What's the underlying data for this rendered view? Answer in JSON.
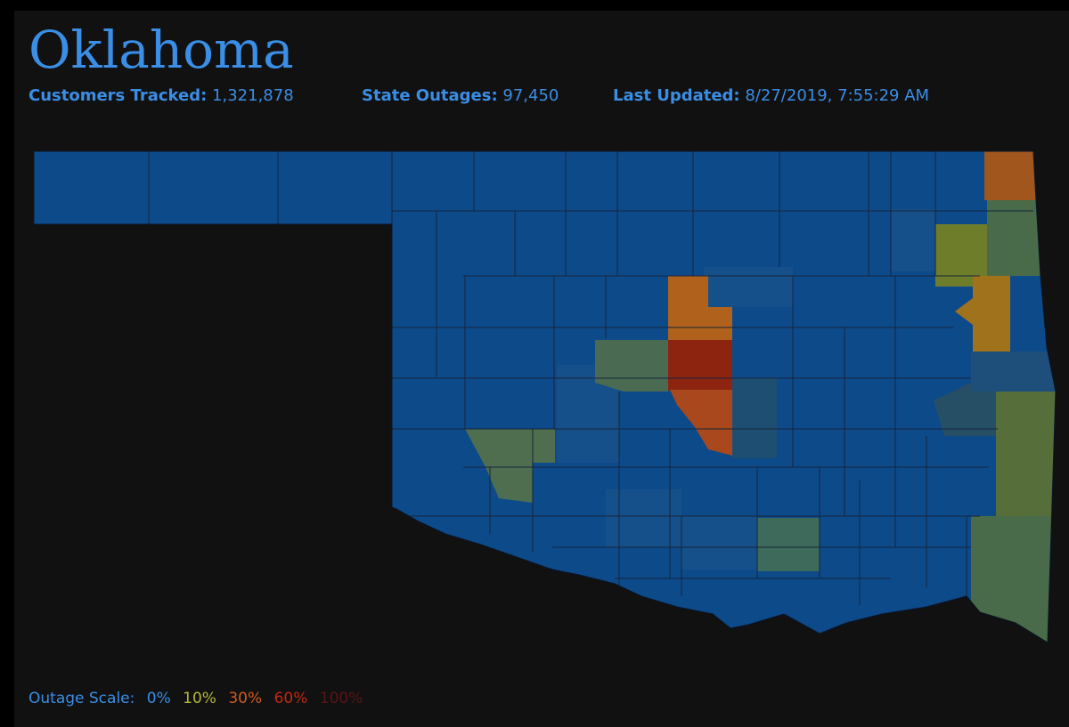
{
  "header": {
    "title": "Oklahoma",
    "stats": [
      {
        "label": "Customers Tracked:",
        "value": "1,321,878"
      },
      {
        "label": "State Outages:",
        "value": "97,450"
      },
      {
        "label": "Last Updated:",
        "value": "8/27/2019, 7:55:29 AM"
      }
    ]
  },
  "legend": {
    "label": "Outage Scale:",
    "items": [
      "0%",
      "10%",
      "30%",
      "60%",
      "100%"
    ]
  }
}
